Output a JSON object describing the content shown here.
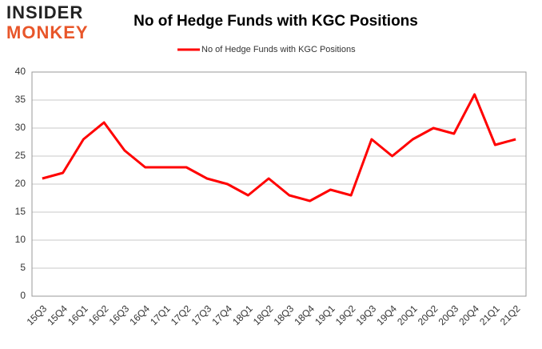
{
  "logo": [
    "INSIDER",
    "MONKEY"
  ],
  "chart_data": {
    "type": "line",
    "title": "No of Hedge Funds with KGC Positions",
    "categories": [
      "15Q3",
      "15Q4",
      "16Q1",
      "16Q2",
      "16Q3",
      "16Q4",
      "17Q1",
      "17Q2",
      "17Q3",
      "17Q4",
      "18Q1",
      "18Q2",
      "18Q3",
      "18Q4",
      "19Q1",
      "19Q2",
      "19Q3",
      "19Q4",
      "20Q1",
      "20Q2",
      "20Q3",
      "20Q4",
      "21Q1",
      "21Q2"
    ],
    "series": [
      {
        "name": "No of Hedge Funds with KGC Positions",
        "color": "#ff0000",
        "values": [
          21,
          22,
          28,
          31,
          26,
          23,
          23,
          23,
          21,
          20,
          18,
          21,
          18,
          17,
          19,
          18,
          28,
          25,
          28,
          30,
          29,
          36,
          27,
          28
        ]
      }
    ],
    "ylim": [
      0,
      40
    ],
    "yticks": [
      0,
      5,
      10,
      15,
      20,
      25,
      30,
      35,
      40
    ],
    "grid": true,
    "legend": "top"
  }
}
